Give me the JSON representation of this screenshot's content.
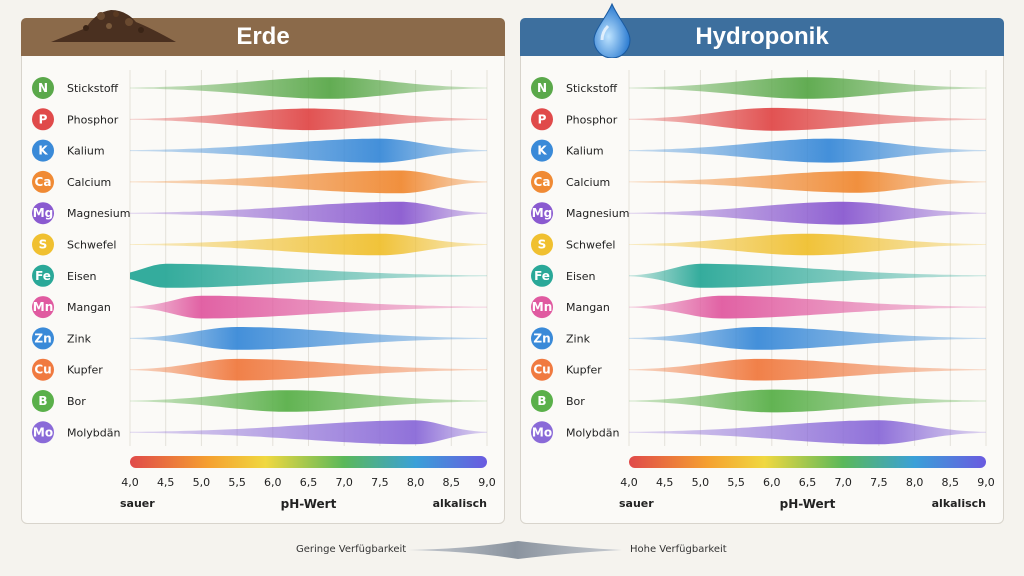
{
  "panels": [
    {
      "title": "Erde",
      "color": "#8b6a4a"
    },
    {
      "title": "Hydroponik",
      "color": "#3d6f9e"
    }
  ],
  "axis": {
    "title": "pH-Wert",
    "left_label": "sauer",
    "right_label": "alkalisch"
  },
  "legend": {
    "low": "Geringe Verfügbarkeit",
    "high": "Hohe Verfügbarkeit"
  },
  "icons": {
    "soil": "soil-pile-icon",
    "water": "water-drop-icon"
  },
  "nutrients": [
    {
      "symbol": "N",
      "name": "Stickstoff",
      "color": "#5aa84a"
    },
    {
      "symbol": "P",
      "name": "Phosphor",
      "color": "#e04a4a"
    },
    {
      "symbol": "K",
      "name": "Kalium",
      "color": "#3a8ad8"
    },
    {
      "symbol": "Ca",
      "name": "Calcium",
      "color": "#f08a34"
    },
    {
      "symbol": "Mg",
      "name": "Magnesium",
      "color": "#8a5ad0"
    },
    {
      "symbol": "S",
      "name": "Schwefel",
      "color": "#f0c030"
    },
    {
      "symbol": "Fe",
      "name": "Eisen",
      "color": "#2aa898"
    },
    {
      "symbol": "Mn",
      "name": "Mangan",
      "color": "#e05aa0"
    },
    {
      "symbol": "Zn",
      "name": "Zink",
      "color": "#3a8ad8"
    },
    {
      "symbol": "Cu",
      "name": "Kupfer",
      "color": "#f07a40"
    },
    {
      "symbol": "B",
      "name": "Bor",
      "color": "#5ab04a"
    },
    {
      "symbol": "Mo",
      "name": "Molybdän",
      "color": "#8a6ad8"
    }
  ],
  "chart_data": [
    {
      "type": "area",
      "title": "Erde",
      "xlabel": "pH-Wert",
      "xlim": [
        4.0,
        9.0
      ],
      "x_ticks": [
        "4,0",
        "4,5",
        "5,0",
        "5,5",
        "6,0",
        "6,5",
        "7,0",
        "7,5",
        "8,0",
        "8,5",
        "9,0"
      ],
      "series": [
        {
          "name": "Stickstoff",
          "start": 4.0,
          "end": 9.0,
          "peak": 6.8,
          "max": 0.9
        },
        {
          "name": "Phosphor",
          "start": 4.0,
          "end": 9.0,
          "peak": 6.5,
          "max": 0.9
        },
        {
          "name": "Kalium",
          "start": 4.0,
          "end": 9.0,
          "peak": 7.5,
          "max": 1.0
        },
        {
          "name": "Calcium",
          "start": 4.0,
          "end": 9.0,
          "peak": 7.8,
          "max": 0.95
        },
        {
          "name": "Magnesium",
          "start": 4.0,
          "end": 9.0,
          "peak": 7.8,
          "max": 0.95
        },
        {
          "name": "Schwefel",
          "start": 4.0,
          "end": 9.0,
          "peak": 7.5,
          "max": 0.9
        },
        {
          "name": "Eisen",
          "start": 4.0,
          "end": 9.0,
          "peak": 4.5,
          "max": 1.0
        },
        {
          "name": "Mangan",
          "start": 4.0,
          "end": 9.0,
          "peak": 5.0,
          "max": 0.95
        },
        {
          "name": "Zink",
          "start": 4.0,
          "end": 9.0,
          "peak": 5.5,
          "max": 0.95
        },
        {
          "name": "Kupfer",
          "start": 4.0,
          "end": 9.0,
          "peak": 5.5,
          "max": 0.9
        },
        {
          "name": "Bor",
          "start": 4.0,
          "end": 9.0,
          "peak": 6.2,
          "max": 0.9
        },
        {
          "name": "Molybdän",
          "start": 4.0,
          "end": 9.0,
          "peak": 8.0,
          "max": 1.0
        }
      ]
    },
    {
      "type": "area",
      "title": "Hydroponik",
      "xlabel": "pH-Wert",
      "xlim": [
        4.0,
        9.0
      ],
      "x_ticks": [
        "4,0",
        "4,5",
        "5,0",
        "5,5",
        "6,0",
        "6,5",
        "7,0",
        "7,5",
        "8,0",
        "8,5",
        "9,0"
      ],
      "series": [
        {
          "name": "Stickstoff",
          "start": 4.0,
          "end": 9.0,
          "peak": 6.5,
          "max": 0.9
        },
        {
          "name": "Phosphor",
          "start": 4.0,
          "end": 9.0,
          "peak": 6.0,
          "max": 0.95
        },
        {
          "name": "Kalium",
          "start": 4.0,
          "end": 9.0,
          "peak": 6.8,
          "max": 1.0
        },
        {
          "name": "Calcium",
          "start": 4.0,
          "end": 9.0,
          "peak": 7.2,
          "max": 0.9
        },
        {
          "name": "Magnesium",
          "start": 4.0,
          "end": 9.0,
          "peak": 7.0,
          "max": 0.95
        },
        {
          "name": "Schwefel",
          "start": 4.0,
          "end": 9.0,
          "peak": 6.5,
          "max": 0.9
        },
        {
          "name": "Eisen",
          "start": 4.0,
          "end": 9.0,
          "peak": 5.0,
          "max": 1.0
        },
        {
          "name": "Mangan",
          "start": 4.0,
          "end": 9.0,
          "peak": 5.3,
          "max": 0.95
        },
        {
          "name": "Zink",
          "start": 4.0,
          "end": 9.0,
          "peak": 5.8,
          "max": 0.95
        },
        {
          "name": "Kupfer",
          "start": 4.0,
          "end": 9.0,
          "peak": 5.8,
          "max": 0.9
        },
        {
          "name": "Bor",
          "start": 4.0,
          "end": 9.0,
          "peak": 6.0,
          "max": 0.95
        },
        {
          "name": "Molybdän",
          "start": 4.0,
          "end": 9.0,
          "peak": 7.5,
          "max": 1.0
        }
      ]
    }
  ]
}
